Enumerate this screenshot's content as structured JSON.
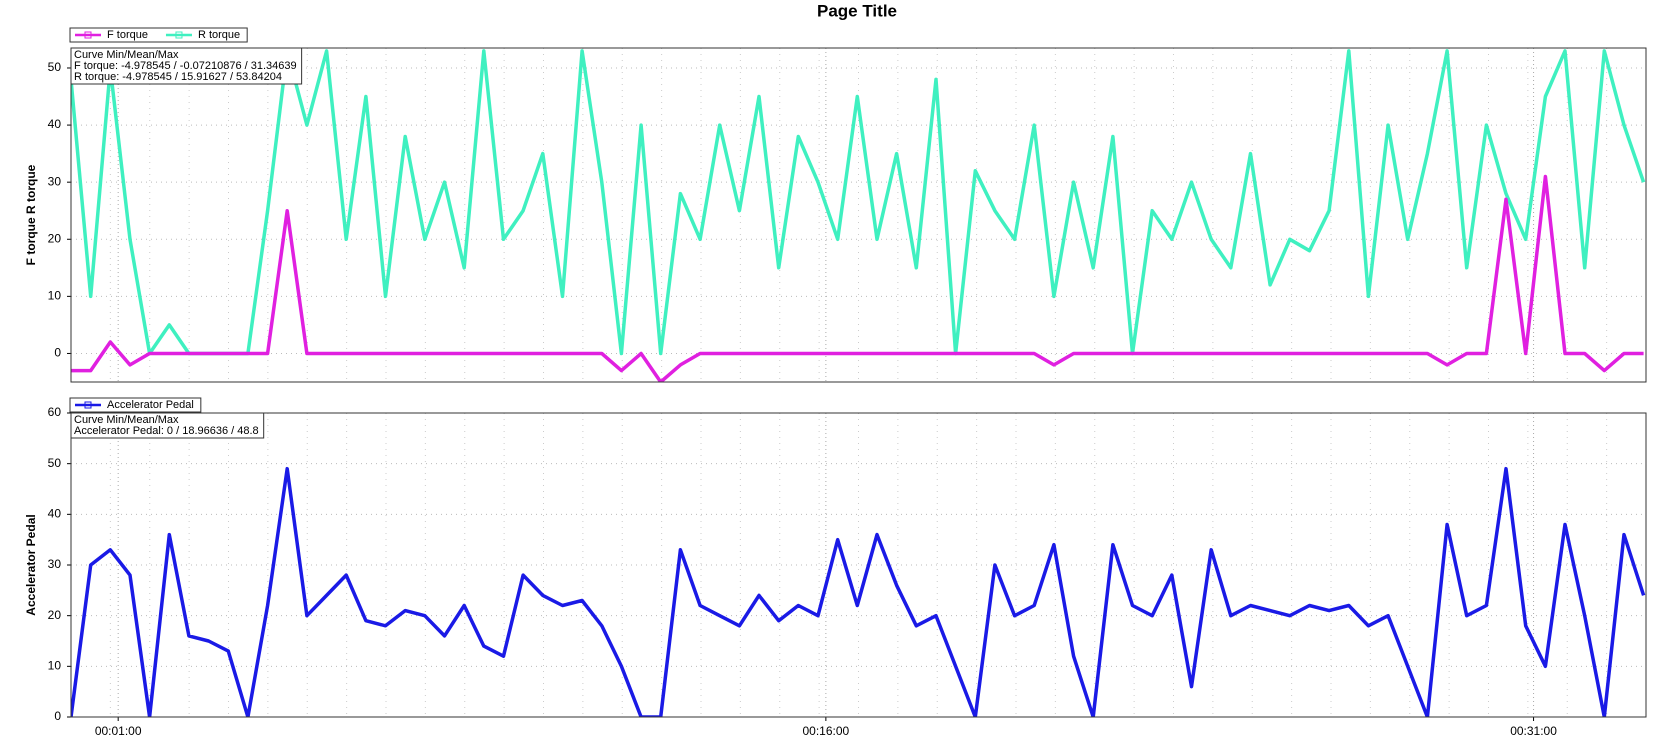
{
  "title": "Page Title",
  "chart_data": [
    {
      "type": "line",
      "y_label": "F torque  R torque",
      "stats": {
        "title": "Curve Min/Mean/Max",
        "lines": [
          "F torque: -4.978545 / -0.07210876 / 31.34639",
          "R torque: -4.978545 / 15.91627 / 53.84204"
        ]
      },
      "x": [
        0,
        25,
        50,
        75,
        100,
        125,
        150,
        175,
        200,
        225,
        250,
        275,
        300,
        325,
        350,
        375,
        400,
        425,
        450,
        475,
        500,
        525,
        550,
        575,
        600,
        625,
        650,
        675,
        700,
        725,
        750,
        775,
        800,
        825,
        850,
        875,
        900,
        925,
        950,
        975,
        1000,
        1025,
        1050,
        1075,
        1100,
        1125,
        1150,
        1175,
        1200,
        1225,
        1250,
        1275,
        1300,
        1325,
        1350,
        1375,
        1400,
        1425,
        1450,
        1475,
        1500,
        1525,
        1550,
        1575,
        1600,
        1625,
        1650,
        1675,
        1700,
        1725,
        1750,
        1775,
        1800,
        1825,
        1850,
        1875,
        1900,
        1925,
        1950,
        1975,
        2000
      ],
      "xlim": [
        0,
        2003
      ],
      "ylim": [
        -5,
        53.5
      ],
      "yticks": [
        0,
        10,
        20,
        30,
        40,
        50
      ],
      "grid": true,
      "series": [
        {
          "name": "R torque",
          "color": "#3ff0c0",
          "values": [
            48,
            10,
            50,
            20,
            0,
            5,
            0,
            0,
            0,
            0,
            25,
            53,
            40,
            53,
            20,
            45,
            10,
            38,
            20,
            30,
            15,
            53,
            20,
            25,
            35,
            10,
            53,
            30,
            0,
            40,
            0,
            28,
            20,
            40,
            25,
            45,
            15,
            38,
            30,
            20,
            45,
            20,
            35,
            15,
            48,
            0,
            32,
            25,
            20,
            40,
            10,
            30,
            15,
            38,
            0,
            25,
            20,
            30,
            20,
            15,
            35,
            12,
            20,
            18,
            25,
            53,
            10,
            40,
            20,
            35,
            53,
            15,
            40,
            28,
            20,
            45,
            53,
            15,
            53,
            40,
            30
          ]
        },
        {
          "name": "F torque",
          "color": "#e020e0",
          "values": [
            -3,
            -3,
            2,
            -2,
            0,
            0,
            0,
            0,
            0,
            0,
            0,
            25,
            0,
            0,
            0,
            0,
            0,
            0,
            0,
            0,
            0,
            0,
            0,
            0,
            0,
            0,
            0,
            0,
            -3,
            0,
            -5,
            -2,
            0,
            0,
            0,
            0,
            0,
            0,
            0,
            0,
            0,
            0,
            0,
            0,
            0,
            0,
            0,
            0,
            0,
            0,
            -2,
            0,
            0,
            0,
            0,
            0,
            0,
            0,
            0,
            0,
            0,
            0,
            0,
            0,
            0,
            0,
            0,
            0,
            0,
            0,
            -2,
            0,
            0,
            27,
            0,
            31,
            0,
            0,
            -3,
            0,
            0
          ]
        }
      ]
    },
    {
      "type": "line",
      "y_label": "Accelerator Pedal",
      "stats": {
        "title": "Curve Min/Mean/Max",
        "lines": [
          "Accelerator Pedal: 0 / 18.96636 / 48.8"
        ]
      },
      "x": [
        0,
        25,
        50,
        75,
        100,
        125,
        150,
        175,
        200,
        225,
        250,
        275,
        300,
        325,
        350,
        375,
        400,
        425,
        450,
        475,
        500,
        525,
        550,
        575,
        600,
        625,
        650,
        675,
        700,
        725,
        750,
        775,
        800,
        825,
        850,
        875,
        900,
        925,
        950,
        975,
        1000,
        1025,
        1050,
        1075,
        1100,
        1125,
        1150,
        1175,
        1200,
        1225,
        1250,
        1275,
        1300,
        1325,
        1350,
        1375,
        1400,
        1425,
        1450,
        1475,
        1500,
        1525,
        1550,
        1575,
        1600,
        1625,
        1650,
        1675,
        1700,
        1725,
        1750,
        1775,
        1800,
        1825,
        1850,
        1875,
        1900,
        1925,
        1950,
        1975,
        2000
      ],
      "xlim": [
        0,
        2003
      ],
      "xticks": [
        {
          "value": 60,
          "label": "00:01:00"
        },
        {
          "value": 960,
          "label": "00:16:00"
        },
        {
          "value": 1860,
          "label": "00:31:00"
        }
      ],
      "ylim": [
        0,
        60
      ],
      "yticks": [
        0,
        10,
        20,
        30,
        40,
        50,
        60
      ],
      "grid": true,
      "series": [
        {
          "name": "Accelerator Pedal",
          "color": "#1a1ae6",
          "values": [
            0,
            30,
            33,
            28,
            0,
            36,
            16,
            15,
            13,
            0,
            22,
            49,
            20,
            24,
            28,
            19,
            18,
            21,
            20,
            16,
            22,
            14,
            12,
            28,
            24,
            22,
            23,
            18,
            10,
            0,
            0,
            33,
            22,
            20,
            18,
            24,
            19,
            22,
            20,
            35,
            22,
            36,
            26,
            18,
            20,
            10,
            0,
            30,
            20,
            22,
            34,
            12,
            0,
            34,
            22,
            20,
            28,
            6,
            33,
            20,
            22,
            21,
            20,
            22,
            21,
            22,
            18,
            20,
            10,
            0,
            38,
            20,
            22,
            49,
            18,
            10,
            38,
            20,
            0,
            36,
            24
          ]
        }
      ]
    }
  ]
}
